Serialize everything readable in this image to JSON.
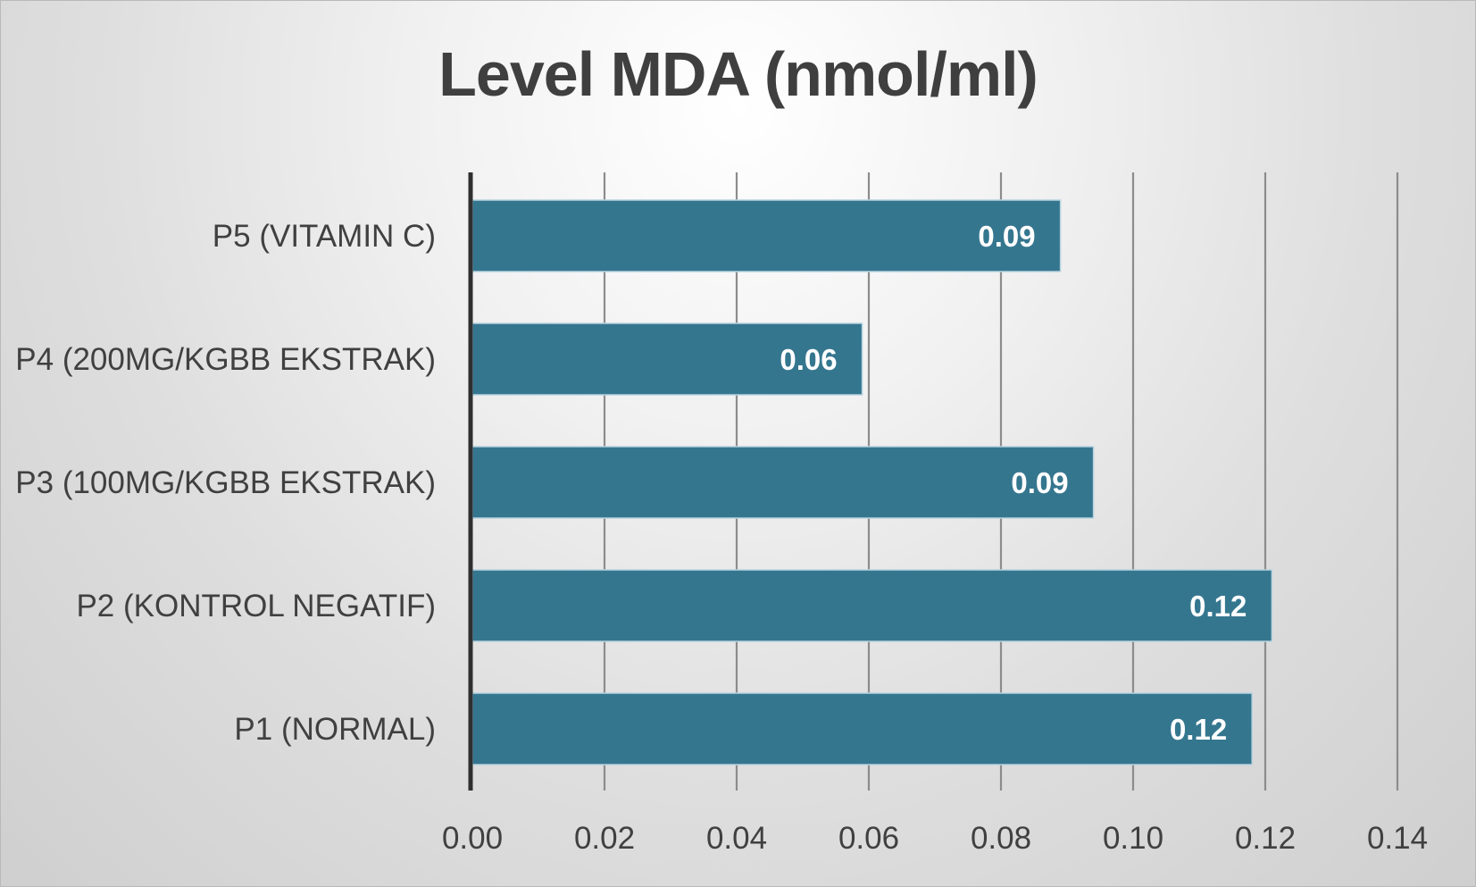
{
  "chart_data": {
    "type": "bar",
    "orientation": "horizontal",
    "title": "Level MDA (nmol/ml)",
    "xlabel": "",
    "ylabel": "",
    "categories": [
      "P1 (NORMAL)",
      "P2 (KONTROL NEGATIF)",
      "P3 (100MG/KGBB EKSTRAK)",
      "P4 (200MG/KGBB EKSTRAK)",
      "P5 (VITAMIN C)"
    ],
    "values": [
      0.118,
      0.121,
      0.094,
      0.059,
      0.089
    ],
    "value_labels": [
      "0.12",
      "0.12",
      "0.09",
      "0.06",
      "0.09"
    ],
    "xlim": [
      0,
      0.14
    ],
    "ticks": [
      "0.00",
      "0.02",
      "0.04",
      "0.06",
      "0.08",
      "0.10",
      "0.12",
      "0.14"
    ],
    "tick_values": [
      0,
      0.02,
      0.04,
      0.06,
      0.08,
      0.1,
      0.12,
      0.14
    ],
    "grid": true,
    "legend": "none",
    "bar_color": "#35768f"
  }
}
